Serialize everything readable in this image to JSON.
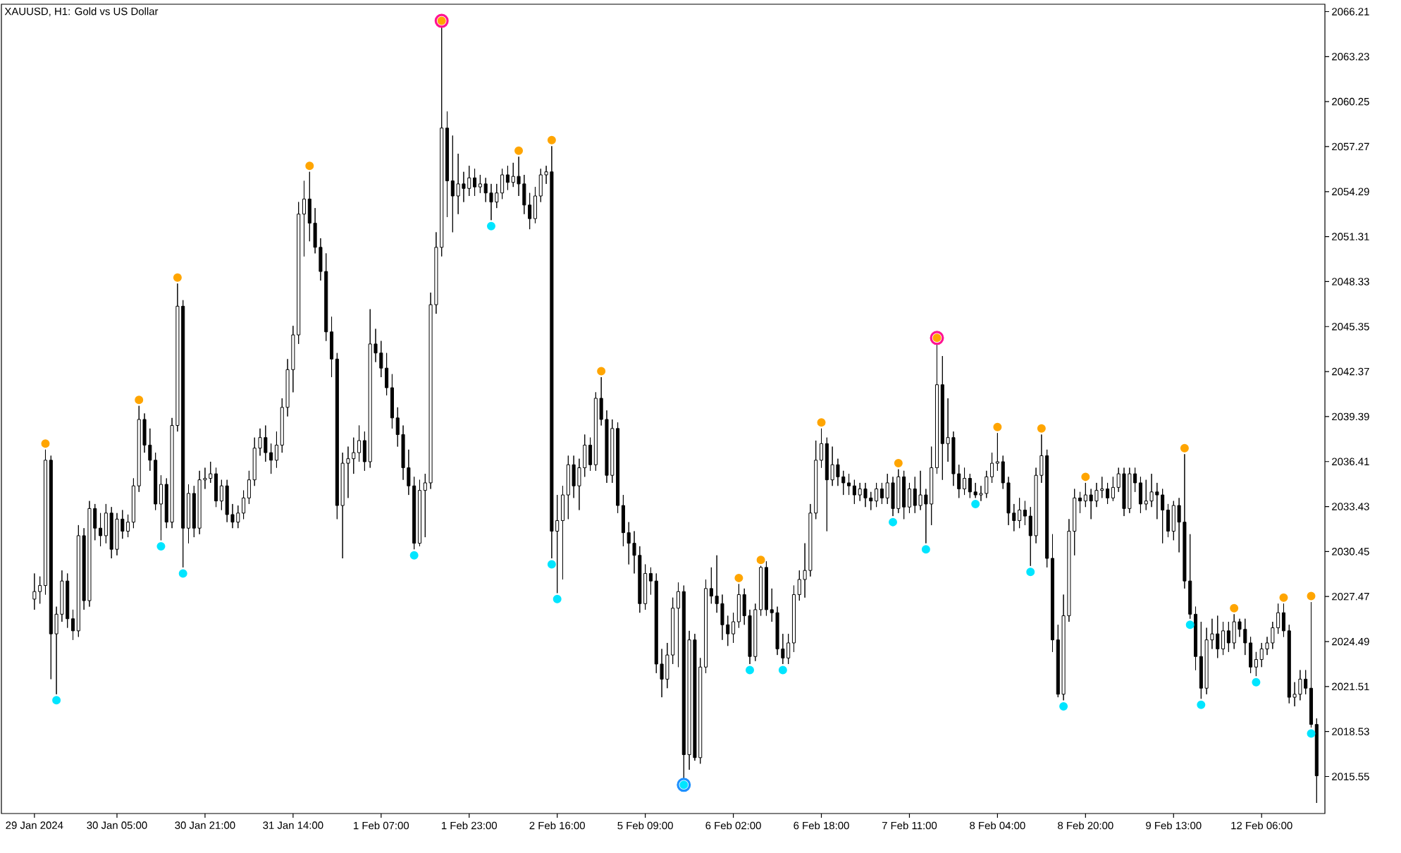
{
  "chart_data": {
    "type": "candlestick",
    "title": "XAUUSD, H1:  Gold vs US Dollar",
    "categories": [
      "29 Jan 2024",
      null,
      null,
      null,
      null,
      null,
      null,
      null,
      null,
      null,
      null,
      null,
      null,
      null,
      null,
      "30 Jan 05:00",
      null,
      null,
      null,
      null,
      null,
      null,
      null,
      null,
      null,
      null,
      null,
      null,
      null,
      null,
      null,
      "30 Jan 21:00",
      null,
      null,
      null,
      null,
      null,
      null,
      null,
      null,
      null,
      null,
      null,
      null,
      null,
      null,
      null,
      "31 Jan 14:00",
      null,
      null,
      null,
      null,
      null,
      null,
      null,
      null,
      null,
      null,
      null,
      null,
      null,
      null,
      null,
      "1 Feb 07:00",
      null,
      null,
      null,
      null,
      null,
      null,
      null,
      null,
      null,
      null,
      null,
      null,
      null,
      null,
      null,
      "1 Feb 23:00",
      null,
      null,
      null,
      null,
      null,
      null,
      null,
      null,
      null,
      null,
      null,
      null,
      null,
      null,
      null,
      "2 Feb 16:00",
      null,
      null,
      null,
      null,
      null,
      null,
      null,
      null,
      null,
      null,
      null,
      null,
      null,
      null,
      null,
      "5 Feb 09:00",
      null,
      null,
      null,
      null,
      null,
      null,
      null,
      null,
      null,
      null,
      null,
      null,
      null,
      null,
      null,
      "6 Feb 02:00",
      null,
      null,
      null,
      null,
      null,
      null,
      null,
      null,
      null,
      null,
      null,
      null,
      null,
      null,
      null,
      "6 Feb 18:00",
      null,
      null,
      null,
      null,
      null,
      null,
      null,
      null,
      null,
      null,
      null,
      null,
      null,
      null,
      null,
      "7 Feb 11:00",
      null,
      null,
      null,
      null,
      null,
      null,
      null,
      null,
      null,
      null,
      null,
      null,
      null,
      null,
      null,
      "8 Feb 04:00",
      null,
      null,
      null,
      null,
      null,
      null,
      null,
      null,
      null,
      null,
      null,
      null,
      null,
      null,
      null,
      "8 Feb 20:00",
      null,
      null,
      null,
      null,
      null,
      null,
      null,
      null,
      null,
      null,
      null,
      null,
      null,
      null,
      null,
      "9 Feb 13:00",
      null,
      null,
      null,
      null,
      null,
      null,
      null,
      null,
      null,
      null,
      null,
      null,
      null,
      null,
      null,
      "12 Feb 06:00",
      null,
      null,
      null,
      null,
      null,
      null,
      null,
      null,
      null,
      null
    ],
    "ohlc": [
      [
        2027.3,
        2029.0,
        2026.6,
        2027.8
      ],
      [
        2027.8,
        2028.8,
        2027.0,
        2028.2
      ],
      [
        2028.2,
        2037.2,
        2027.6,
        2036.5
      ],
      [
        2036.5,
        2036.8,
        2022.0,
        2025.0
      ],
      [
        2025.0,
        2026.8,
        2021.0,
        2026.3
      ],
      [
        2026.3,
        2029.2,
        2025.8,
        2028.5
      ],
      [
        2028.5,
        2029.0,
        2025.4,
        2026.0
      ],
      [
        2026.0,
        2026.6,
        2024.6,
        2025.2
      ],
      [
        2025.2,
        2032.2,
        2024.8,
        2031.5
      ],
      [
        2031.5,
        2032.0,
        2026.6,
        2027.2
      ],
      [
        2027.2,
        2033.8,
        2026.8,
        2033.3
      ],
      [
        2033.3,
        2033.6,
        2031.2,
        2032.0
      ],
      [
        2032.0,
        2033.0,
        2030.8,
        2031.5
      ],
      [
        2031.5,
        2033.6,
        2031.0,
        2033.0
      ],
      [
        2033.0,
        2033.4,
        2030.0,
        2030.6
      ],
      [
        2030.6,
        2033.0,
        2030.2,
        2032.6
      ],
      [
        2032.6,
        2033.2,
        2031.3,
        2031.8
      ],
      [
        2031.8,
        2032.9,
        2031.4,
        2032.4
      ],
      [
        2032.4,
        2035.3,
        2032.0,
        2034.8
      ],
      [
        2034.8,
        2040.1,
        2034.4,
        2039.2
      ],
      [
        2039.2,
        2039.6,
        2037.0,
        2037.5
      ],
      [
        2037.5,
        2038.6,
        2035.8,
        2036.5
      ],
      [
        2036.5,
        2037.0,
        2033.2,
        2033.6
      ],
      [
        2033.6,
        2035.5,
        2031.2,
        2034.9
      ],
      [
        2034.9,
        2035.3,
        2032.0,
        2032.4
      ],
      [
        2032.4,
        2039.3,
        2032.0,
        2038.8
      ],
      [
        2038.8,
        2048.2,
        2038.4,
        2046.7
      ],
      [
        2046.7,
        2047.1,
        2029.4,
        2032.0
      ],
      [
        2032.0,
        2034.9,
        2031.0,
        2034.3
      ],
      [
        2034.3,
        2034.8,
        2031.4,
        2032.0
      ],
      [
        2032.0,
        2035.8,
        2031.6,
        2035.2
      ],
      [
        2035.2,
        2036.0,
        2034.6,
        2035.3
      ],
      [
        2035.3,
        2036.4,
        2035.0,
        2035.6
      ],
      [
        2035.6,
        2036.0,
        2033.4,
        2033.8
      ],
      [
        2033.8,
        2035.2,
        2033.2,
        2034.8
      ],
      [
        2034.8,
        2035.2,
        2032.4,
        2032.9
      ],
      [
        2032.9,
        2033.6,
        2032.0,
        2032.4
      ],
      [
        2032.4,
        2033.5,
        2032.0,
        2033.0
      ],
      [
        2033.0,
        2034.5,
        2032.6,
        2034.0
      ],
      [
        2034.0,
        2035.8,
        2033.6,
        2035.2
      ],
      [
        2035.2,
        2038.0,
        2034.8,
        2037.3
      ],
      [
        2037.3,
        2038.6,
        2036.8,
        2038.0
      ],
      [
        2038.0,
        2038.8,
        2036.4,
        2037.0
      ],
      [
        2037.0,
        2037.6,
        2035.6,
        2036.5
      ],
      [
        2036.5,
        2038.4,
        2036.0,
        2037.5
      ],
      [
        2037.5,
        2040.6,
        2037.0,
        2040.0
      ],
      [
        2040.0,
        2043.2,
        2039.4,
        2042.5
      ],
      [
        2042.5,
        2045.4,
        2041.0,
        2044.8
      ],
      [
        2044.8,
        2053.6,
        2044.2,
        2052.8
      ],
      [
        2052.8,
        2055.0,
        2050.0,
        2053.8
      ],
      [
        2053.8,
        2055.6,
        2051.0,
        2052.2
      ],
      [
        2052.2,
        2053.2,
        2050.2,
        2050.6
      ],
      [
        2050.6,
        2051.2,
        2048.4,
        2049.0
      ],
      [
        2049.0,
        2050.2,
        2044.4,
        2045.0
      ],
      [
        2045.0,
        2046.0,
        2042.0,
        2043.2
      ],
      [
        2043.2,
        2043.6,
        2032.6,
        2033.5
      ],
      [
        2033.5,
        2037.0,
        2030.0,
        2036.3
      ],
      [
        2036.3,
        2037.4,
        2034.0,
        2036.6
      ],
      [
        2036.6,
        2038.0,
        2035.6,
        2037.0
      ],
      [
        2037.0,
        2038.8,
        2036.4,
        2037.8
      ],
      [
        2037.8,
        2038.4,
        2035.8,
        2036.4
      ],
      [
        2036.4,
        2046.5,
        2036.0,
        2044.2
      ],
      [
        2044.2,
        2045.2,
        2043.0,
        2043.6
      ],
      [
        2043.6,
        2044.4,
        2042.0,
        2042.6
      ],
      [
        2042.6,
        2043.6,
        2040.8,
        2041.3
      ],
      [
        2041.3,
        2042.2,
        2038.6,
        2039.3
      ],
      [
        2039.3,
        2040.0,
        2037.4,
        2038.2
      ],
      [
        2038.2,
        2038.8,
        2035.2,
        2036.0
      ],
      [
        2036.0,
        2037.2,
        2034.2,
        2034.8
      ],
      [
        2034.8,
        2035.4,
        2030.6,
        2031.0
      ],
      [
        2031.0,
        2035.2,
        2030.8,
        2034.5
      ],
      [
        2034.5,
        2035.6,
        2031.4,
        2035.0
      ],
      [
        2035.0,
        2047.6,
        2034.6,
        2046.8
      ],
      [
        2046.8,
        2051.6,
        2046.2,
        2050.6
      ],
      [
        2050.6,
        2065.2,
        2050.0,
        2058.5
      ],
      [
        2058.5,
        2059.6,
        2052.6,
        2055.0
      ],
      [
        2055.0,
        2058.0,
        2051.6,
        2054.0
      ],
      [
        2054.0,
        2056.8,
        2052.8,
        2054.8
      ],
      [
        2054.8,
        2055.6,
        2053.6,
        2054.5
      ],
      [
        2054.5,
        2056.0,
        2054.0,
        2055.2
      ],
      [
        2055.2,
        2055.8,
        2054.0,
        2054.6
      ],
      [
        2054.6,
        2055.4,
        2054.2,
        2054.8
      ],
      [
        2054.8,
        2055.2,
        2053.6,
        2054.2
      ],
      [
        2054.2,
        2054.8,
        2052.4,
        2053.6
      ],
      [
        2053.6,
        2054.8,
        2053.2,
        2054.2
      ],
      [
        2054.2,
        2055.8,
        2053.8,
        2055.4
      ],
      [
        2055.4,
        2056.0,
        2054.4,
        2054.9
      ],
      [
        2054.9,
        2056.2,
        2054.6,
        2055.3
      ],
      [
        2055.3,
        2056.6,
        2054.0,
        2054.8
      ],
      [
        2054.8,
        2055.4,
        2052.8,
        2053.4
      ],
      [
        2053.4,
        2054.2,
        2051.8,
        2052.5
      ],
      [
        2052.5,
        2054.6,
        2052.2,
        2054.0
      ],
      [
        2054.0,
        2055.8,
        2053.6,
        2055.4
      ],
      [
        2055.4,
        2056.0,
        2054.8,
        2055.6
      ],
      [
        2055.6,
        2057.3,
        2030.0,
        2031.8
      ],
      [
        2031.8,
        2034.2,
        2027.7,
        2032.5
      ],
      [
        2032.5,
        2034.8,
        2028.6,
        2034.2
      ],
      [
        2034.2,
        2036.8,
        2032.6,
        2036.2
      ],
      [
        2036.2,
        2036.8,
        2034.0,
        2034.8
      ],
      [
        2034.8,
        2036.6,
        2033.2,
        2036.0
      ],
      [
        2036.0,
        2038.2,
        2035.4,
        2037.5
      ],
      [
        2037.5,
        2038.0,
        2035.8,
        2036.2
      ],
      [
        2036.2,
        2041.0,
        2035.8,
        2040.6
      ],
      [
        2040.6,
        2042.0,
        2038.8,
        2039.2
      ],
      [
        2039.2,
        2039.8,
        2035.0,
        2035.5
      ],
      [
        2035.5,
        2039.2,
        2035.0,
        2038.6
      ],
      [
        2038.6,
        2039.0,
        2033.0,
        2033.5
      ],
      [
        2033.5,
        2034.2,
        2030.8,
        2031.7
      ],
      [
        2031.7,
        2032.4,
        2029.6,
        2031.0
      ],
      [
        2031.0,
        2031.8,
        2029.0,
        2030.2
      ],
      [
        2030.2,
        2030.8,
        2026.4,
        2027.0
      ],
      [
        2027.0,
        2029.6,
        2026.6,
        2029.0
      ],
      [
        2029.0,
        2029.4,
        2027.6,
        2028.5
      ],
      [
        2028.5,
        2029.0,
        2022.4,
        2023.0
      ],
      [
        2023.0,
        2024.0,
        2020.8,
        2022.0
      ],
      [
        2022.0,
        2024.4,
        2021.4,
        2023.6
      ],
      [
        2023.6,
        2027.4,
        2023.0,
        2026.7
      ],
      [
        2026.7,
        2028.4,
        2022.8,
        2027.8
      ],
      [
        2027.8,
        2028.2,
        2015.4,
        2017.0
      ],
      [
        2017.0,
        2025.2,
        2016.0,
        2024.6
      ],
      [
        2024.6,
        2025.0,
        2016.6,
        2016.8
      ],
      [
        2016.8,
        2023.4,
        2016.4,
        2022.8
      ],
      [
        2022.8,
        2028.6,
        2022.4,
        2028.0
      ],
      [
        2028.0,
        2029.4,
        2027.0,
        2027.5
      ],
      [
        2027.5,
        2030.2,
        2026.4,
        2027.0
      ],
      [
        2027.0,
        2027.6,
        2024.6,
        2025.6
      ],
      [
        2025.6,
        2026.2,
        2024.2,
        2025.0
      ],
      [
        2025.0,
        2026.4,
        2024.4,
        2025.8
      ],
      [
        2025.8,
        2028.3,
        2025.4,
        2027.6
      ],
      [
        2027.6,
        2028.0,
        2025.6,
        2026.2
      ],
      [
        2026.2,
        2026.6,
        2023.0,
        2023.5
      ],
      [
        2023.5,
        2027.0,
        2023.2,
        2026.6
      ],
      [
        2026.6,
        2029.5,
        2026.2,
        2029.4
      ],
      [
        2029.4,
        2029.8,
        2026.2,
        2026.6
      ],
      [
        2026.6,
        2028.0,
        2025.8,
        2026.4
      ],
      [
        2026.4,
        2026.8,
        2023.6,
        2024.0
      ],
      [
        2024.0,
        2025.0,
        2023.0,
        2023.4
      ],
      [
        2023.4,
        2025.0,
        2023.0,
        2024.4
      ],
      [
        2024.4,
        2028.2,
        2023.8,
        2027.6
      ],
      [
        2027.6,
        2029.2,
        2027.2,
        2028.6
      ],
      [
        2028.6,
        2031.0,
        2027.4,
        2029.2
      ],
      [
        2029.2,
        2033.6,
        2028.8,
        2033.0
      ],
      [
        2033.0,
        2037.8,
        2032.6,
        2036.5
      ],
      [
        2036.5,
        2038.6,
        2036.0,
        2037.6
      ],
      [
        2037.6,
        2038.0,
        2031.8,
        2035.2
      ],
      [
        2035.2,
        2037.4,
        2034.8,
        2036.2
      ],
      [
        2036.2,
        2036.6,
        2034.8,
        2035.4
      ],
      [
        2035.4,
        2035.8,
        2034.2,
        2035.0
      ],
      [
        2035.0,
        2035.6,
        2034.2,
        2034.8
      ],
      [
        2034.8,
        2035.2,
        2033.6,
        2034.2
      ],
      [
        2034.2,
        2035.0,
        2033.8,
        2034.6
      ],
      [
        2034.6,
        2035.0,
        2033.4,
        2034.0
      ],
      [
        2034.0,
        2034.4,
        2033.2,
        2033.8
      ],
      [
        2033.8,
        2035.0,
        2033.4,
        2034.6
      ],
      [
        2034.6,
        2035.0,
        2033.6,
        2034.0
      ],
      [
        2034.0,
        2035.6,
        2033.6,
        2035.0
      ],
      [
        2035.0,
        2035.4,
        2032.8,
        2033.3
      ],
      [
        2033.3,
        2035.9,
        2033.0,
        2035.4
      ],
      [
        2035.4,
        2035.8,
        2032.6,
        2033.4
      ],
      [
        2033.4,
        2035.0,
        2033.0,
        2034.6
      ],
      [
        2034.6,
        2035.4,
        2033.0,
        2033.5
      ],
      [
        2033.5,
        2035.8,
        2033.2,
        2034.2
      ],
      [
        2034.2,
        2034.6,
        2031.0,
        2033.6
      ],
      [
        2033.6,
        2037.4,
        2032.2,
        2036.0
      ],
      [
        2036.0,
        2044.2,
        2035.6,
        2041.5
      ],
      [
        2041.5,
        2043.4,
        2035.2,
        2037.6
      ],
      [
        2037.6,
        2040.6,
        2036.4,
        2038.0
      ],
      [
        2038.0,
        2038.4,
        2034.8,
        2035.6
      ],
      [
        2035.6,
        2036.2,
        2034.0,
        2034.6
      ],
      [
        2034.6,
        2036.0,
        2034.2,
        2035.3
      ],
      [
        2035.3,
        2035.6,
        2034.0,
        2034.4
      ],
      [
        2034.4,
        2035.0,
        2034.0,
        2034.2
      ],
      [
        2034.2,
        2034.8,
        2033.8,
        2034.3
      ],
      [
        2034.3,
        2035.8,
        2034.0,
        2035.4
      ],
      [
        2035.4,
        2037.0,
        2035.0,
        2036.3
      ],
      [
        2036.3,
        2038.3,
        2035.8,
        2036.4
      ],
      [
        2036.4,
        2036.8,
        2034.6,
        2035.0
      ],
      [
        2035.0,
        2035.4,
        2032.2,
        2033.0
      ],
      [
        2033.0,
        2033.6,
        2031.8,
        2032.5
      ],
      [
        2032.5,
        2034.0,
        2032.0,
        2033.2
      ],
      [
        2033.2,
        2033.8,
        2032.2,
        2032.8
      ],
      [
        2032.8,
        2033.4,
        2029.5,
        2031.5
      ],
      [
        2031.5,
        2036.0,
        2031.0,
        2035.5
      ],
      [
        2035.5,
        2038.2,
        2035.0,
        2036.8
      ],
      [
        2036.8,
        2037.2,
        2029.4,
        2030.0
      ],
      [
        2030.0,
        2031.6,
        2023.8,
        2024.6
      ],
      [
        2024.6,
        2025.6,
        2020.8,
        2021.0
      ],
      [
        2021.0,
        2027.6,
        2020.6,
        2026.2
      ],
      [
        2026.2,
        2032.6,
        2025.8,
        2031.8
      ],
      [
        2031.8,
        2034.6,
        2030.2,
        2034.0
      ],
      [
        2034.0,
        2034.4,
        2033.0,
        2033.8
      ],
      [
        2033.8,
        2035.0,
        2033.4,
        2034.2
      ],
      [
        2034.2,
        2034.6,
        2032.6,
        2033.8
      ],
      [
        2033.8,
        2035.0,
        2033.4,
        2034.5
      ],
      [
        2034.5,
        2035.4,
        2034.0,
        2034.6
      ],
      [
        2034.6,
        2035.0,
        2033.6,
        2034.0
      ],
      [
        2034.0,
        2035.4,
        2033.8,
        2034.7
      ],
      [
        2034.7,
        2036.0,
        2034.4,
        2035.6
      ],
      [
        2035.6,
        2036.0,
        2032.8,
        2033.3
      ],
      [
        2033.3,
        2036.0,
        2033.0,
        2035.6
      ],
      [
        2035.6,
        2036.0,
        2034.4,
        2035.0
      ],
      [
        2035.0,
        2035.4,
        2033.0,
        2033.6
      ],
      [
        2033.6,
        2035.2,
        2033.2,
        2033.8
      ],
      [
        2033.8,
        2035.6,
        2033.4,
        2034.4
      ],
      [
        2034.4,
        2035.0,
        2032.6,
        2034.2
      ],
      [
        2034.2,
        2034.6,
        2031.0,
        2033.2
      ],
      [
        2033.2,
        2033.6,
        2031.4,
        2031.8
      ],
      [
        2031.8,
        2033.8,
        2031.2,
        2033.5
      ],
      [
        2033.5,
        2034.0,
        2030.4,
        2032.4
      ],
      [
        2032.4,
        2036.9,
        2028.0,
        2028.5
      ],
      [
        2028.5,
        2031.6,
        2026.0,
        2026.3
      ],
      [
        2026.3,
        2026.8,
        2022.6,
        2023.5
      ],
      [
        2023.5,
        2025.8,
        2020.7,
        2021.4
      ],
      [
        2021.4,
        2025.4,
        2021.0,
        2024.6
      ],
      [
        2024.6,
        2026.0,
        2024.0,
        2025.0
      ],
      [
        2025.0,
        2026.2,
        2023.4,
        2024.0
      ],
      [
        2024.0,
        2025.8,
        2023.6,
        2025.2
      ],
      [
        2025.2,
        2025.8,
        2023.8,
        2024.4
      ],
      [
        2024.4,
        2026.3,
        2024.0,
        2025.8
      ],
      [
        2025.8,
        2026.0,
        2024.8,
        2025.3
      ],
      [
        2025.3,
        2026.0,
        2023.6,
        2024.4
      ],
      [
        2024.4,
        2024.8,
        2022.4,
        2022.8
      ],
      [
        2022.8,
        2023.8,
        2022.2,
        2023.3
      ],
      [
        2023.3,
        2024.4,
        2022.8,
        2024.0
      ],
      [
        2024.0,
        2024.8,
        2023.6,
        2024.4
      ],
      [
        2024.4,
        2025.8,
        2024.0,
        2025.4
      ],
      [
        2025.4,
        2027.0,
        2025.0,
        2026.4
      ],
      [
        2026.4,
        2027.0,
        2024.8,
        2025.2
      ],
      [
        2025.2,
        2025.6,
        2020.4,
        2020.8
      ],
      [
        2020.8,
        2021.8,
        2020.2,
        2021.0
      ],
      [
        2021.0,
        2022.6,
        2020.6,
        2022.0
      ],
      [
        2022.0,
        2022.6,
        2021.0,
        2021.4
      ],
      [
        2021.4,
        2027.1,
        2018.8,
        2019.0
      ],
      [
        2019.0,
        2019.4,
        2013.8,
        2015.6
      ]
    ],
    "series": [
      {
        "type": "scatter",
        "marker": "circle",
        "color": "#ffa500",
        "values": [
          null,
          null,
          2037.6,
          null,
          null,
          null,
          null,
          null,
          null,
          null,
          null,
          null,
          null,
          null,
          null,
          null,
          null,
          null,
          null,
          2040.5,
          null,
          null,
          null,
          null,
          null,
          null,
          2048.6,
          null,
          null,
          null,
          null,
          null,
          null,
          null,
          null,
          null,
          null,
          null,
          null,
          null,
          null,
          null,
          null,
          null,
          null,
          null,
          null,
          null,
          null,
          null,
          2056.0,
          null,
          null,
          null,
          null,
          null,
          null,
          null,
          null,
          null,
          null,
          null,
          null,
          null,
          null,
          null,
          null,
          null,
          null,
          null,
          null,
          null,
          null,
          null,
          2065.6,
          null,
          null,
          null,
          null,
          null,
          null,
          null,
          null,
          null,
          null,
          null,
          null,
          null,
          2057.0,
          null,
          null,
          null,
          null,
          null,
          2057.7,
          null,
          null,
          null,
          null,
          null,
          null,
          null,
          null,
          2042.4,
          null,
          null,
          null,
          null,
          null,
          null,
          null,
          null,
          null,
          null,
          null,
          null,
          null,
          null,
          null,
          null,
          null,
          null,
          null,
          null,
          null,
          null,
          null,
          null,
          2028.7,
          null,
          null,
          null,
          2029.9,
          null,
          null,
          null,
          null,
          null,
          null,
          null,
          null,
          null,
          null,
          2039.0,
          null,
          null,
          null,
          null,
          null,
          null,
          null,
          null,
          null,
          null,
          null,
          null,
          null,
          2036.3,
          null,
          null,
          null,
          null,
          null,
          null,
          2044.6,
          null,
          null,
          null,
          null,
          null,
          null,
          null,
          null,
          null,
          null,
          2038.7,
          null,
          null,
          null,
          null,
          null,
          null,
          null,
          2038.6,
          null,
          null,
          null,
          null,
          null,
          null,
          null,
          2035.4,
          null,
          null,
          null,
          null,
          null,
          null,
          null,
          null,
          null,
          null,
          null,
          null,
          null,
          null,
          null,
          null,
          null,
          2037.3,
          null,
          null,
          null,
          null,
          null,
          null,
          null,
          null,
          2026.7,
          null,
          null,
          null,
          null,
          null,
          null,
          null,
          null,
          2027.4,
          null,
          null,
          null,
          null,
          2027.5,
          null
        ]
      },
      {
        "type": "scatter",
        "marker": "circle",
        "color": "#00e5ff",
        "values": [
          null,
          null,
          null,
          null,
          2020.6,
          null,
          null,
          null,
          null,
          null,
          null,
          null,
          null,
          null,
          null,
          null,
          null,
          null,
          null,
          null,
          null,
          null,
          null,
          2030.8,
          null,
          null,
          null,
          2029.0,
          null,
          null,
          null,
          null,
          null,
          null,
          null,
          null,
          null,
          null,
          null,
          null,
          null,
          null,
          null,
          null,
          null,
          null,
          null,
          null,
          null,
          null,
          null,
          null,
          null,
          null,
          null,
          null,
          null,
          null,
          null,
          null,
          null,
          null,
          null,
          null,
          null,
          null,
          null,
          null,
          null,
          2030.2,
          null,
          null,
          null,
          null,
          null,
          null,
          null,
          null,
          null,
          null,
          null,
          null,
          null,
          2052.0,
          null,
          null,
          null,
          null,
          null,
          null,
          null,
          null,
          null,
          null,
          2029.6,
          2027.3,
          null,
          null,
          null,
          null,
          null,
          null,
          null,
          null,
          null,
          null,
          null,
          null,
          null,
          null,
          null,
          null,
          null,
          null,
          null,
          null,
          null,
          null,
          2015.0,
          null,
          null,
          null,
          null,
          null,
          null,
          null,
          null,
          null,
          null,
          null,
          2022.6,
          null,
          null,
          null,
          null,
          null,
          2022.6,
          null,
          null,
          null,
          null,
          null,
          null,
          null,
          null,
          null,
          null,
          null,
          null,
          null,
          null,
          null,
          null,
          null,
          null,
          null,
          2032.4,
          null,
          null,
          null,
          null,
          null,
          2030.6,
          null,
          null,
          null,
          null,
          null,
          null,
          null,
          null,
          2033.6,
          null,
          null,
          null,
          null,
          null,
          null,
          null,
          null,
          null,
          2029.1,
          null,
          null,
          null,
          null,
          null,
          2020.2,
          null,
          null,
          null,
          null,
          null,
          null,
          null,
          null,
          null,
          null,
          null,
          null,
          null,
          null,
          null,
          null,
          null,
          null,
          null,
          null,
          null,
          null,
          2025.6,
          null,
          2020.3,
          null,
          null,
          null,
          null,
          null,
          null,
          null,
          null,
          null,
          2021.8,
          null,
          null,
          null,
          null,
          null,
          null,
          null,
          null,
          null,
          2018.4,
          null
        ]
      },
      {
        "type": "scatter",
        "marker": "circle",
        "color": "#ff1493",
        "values": [
          null,
          null,
          null,
          null,
          null,
          null,
          null,
          null,
          null,
          null,
          null,
          null,
          null,
          null,
          null,
          null,
          null,
          null,
          null,
          null,
          null,
          null,
          null,
          null,
          null,
          null,
          null,
          null,
          null,
          null,
          null,
          null,
          null,
          null,
          null,
          null,
          null,
          null,
          null,
          null,
          null,
          null,
          null,
          null,
          null,
          null,
          null,
          null,
          null,
          null,
          null,
          null,
          null,
          null,
          null,
          null,
          null,
          null,
          null,
          null,
          null,
          null,
          null,
          null,
          null,
          null,
          null,
          null,
          null,
          null,
          null,
          null,
          null,
          null,
          2065.6,
          null,
          null,
          null,
          null,
          null,
          null,
          null,
          null,
          null,
          null,
          null,
          null,
          null,
          null,
          null,
          null,
          null,
          null,
          null,
          null,
          null,
          null,
          null,
          null,
          null,
          null,
          null,
          null,
          null,
          null,
          null,
          null,
          null,
          null,
          null,
          null,
          null,
          null,
          null,
          null,
          null,
          null,
          null,
          null,
          null,
          null,
          null,
          null,
          null,
          null,
          null,
          null,
          null,
          null,
          null,
          null,
          null,
          null,
          null,
          null,
          null,
          null,
          null,
          null,
          null,
          null,
          null,
          null,
          null,
          null,
          null,
          null,
          null,
          null,
          null,
          null,
          null,
          null,
          null,
          null,
          null,
          null,
          null,
          null,
          null,
          null,
          null,
          null,
          null,
          2044.6,
          null,
          null,
          null,
          null,
          null,
          null,
          null,
          null,
          null,
          null,
          null,
          null,
          null,
          null,
          null,
          null,
          null,
          null,
          null,
          null,
          null,
          null,
          null,
          null,
          null,
          null,
          null,
          null,
          null,
          null,
          null,
          null,
          null,
          null,
          null,
          null,
          null,
          null,
          null,
          null,
          null,
          null,
          null,
          null,
          null,
          null,
          null,
          null,
          null,
          null,
          null,
          null,
          null,
          null,
          null,
          null,
          null,
          null,
          null,
          null,
          null,
          null,
          null,
          null,
          null,
          null,
          null,
          null,
          null
        ]
      },
      {
        "type": "scatter",
        "marker": "circle",
        "color": "#1e90ff",
        "values": [
          null,
          null,
          null,
          null,
          null,
          null,
          null,
          null,
          null,
          null,
          null,
          null,
          null,
          null,
          null,
          null,
          null,
          null,
          null,
          null,
          null,
          null,
          null,
          null,
          null,
          null,
          null,
          null,
          null,
          null,
          null,
          null,
          null,
          null,
          null,
          null,
          null,
          null,
          null,
          null,
          null,
          null,
          null,
          null,
          null,
          null,
          null,
          null,
          null,
          null,
          null,
          null,
          null,
          null,
          null,
          null,
          null,
          null,
          null,
          null,
          null,
          null,
          null,
          null,
          null,
          null,
          null,
          null,
          null,
          null,
          null,
          null,
          null,
          null,
          null,
          null,
          null,
          null,
          null,
          null,
          null,
          null,
          null,
          null,
          null,
          null,
          null,
          null,
          null,
          null,
          null,
          null,
          null,
          null,
          null,
          null,
          null,
          null,
          null,
          null,
          null,
          null,
          null,
          null,
          null,
          null,
          null,
          null,
          null,
          null,
          null,
          null,
          null,
          null,
          null,
          null,
          null,
          null,
          2015.0,
          null,
          null,
          null,
          null,
          null,
          null,
          null,
          null,
          null,
          null,
          null,
          null,
          null,
          null,
          null,
          null,
          null,
          null,
          null,
          null,
          null,
          null,
          null,
          null,
          null,
          null,
          null,
          null,
          null,
          null,
          null,
          null,
          null,
          null,
          null,
          null,
          null,
          null,
          null,
          null,
          null,
          null,
          null,
          null,
          null,
          null,
          null,
          null,
          null,
          null,
          null,
          null,
          null,
          null,
          null,
          null,
          null,
          null,
          null,
          null,
          null,
          null,
          null,
          null,
          null,
          null,
          null,
          null,
          null,
          null,
          null,
          null,
          null,
          null,
          null,
          null,
          null,
          null,
          null,
          null,
          null,
          null,
          null,
          null,
          null,
          null,
          null,
          null,
          null,
          null,
          null,
          null,
          null,
          null,
          null,
          null,
          null,
          null,
          null,
          null,
          null,
          null,
          null,
          null,
          null,
          null,
          null,
          null,
          null,
          null,
          null,
          null,
          null,
          null,
          null
        ]
      }
    ],
    "ylim": [
      2013.1,
      2066.7
    ],
    "yticks": [
      2015.55,
      2018.53,
      2021.51,
      2024.49,
      2027.47,
      2030.45,
      2033.43,
      2036.41,
      2039.39,
      2042.37,
      2045.35,
      2048.33,
      2051.31,
      2054.29,
      2057.27,
      2060.25,
      2063.23,
      2066.21
    ],
    "grid": false
  }
}
